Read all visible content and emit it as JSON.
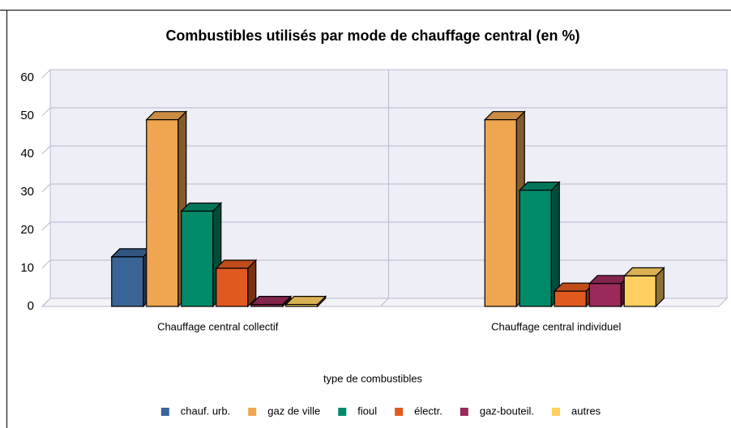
{
  "chart_data": {
    "type": "bar3d",
    "title": "Combustibles utilisés par mode de chauffage central (en %)",
    "x_label": "type de combustibles",
    "categories": [
      "Chauffage central collectif",
      "Chauffage central individuel"
    ],
    "series": [
      {
        "name": "chauf. urb.",
        "color": "#3a6496",
        "values": [
          13,
          null
        ]
      },
      {
        "name": "gaz de ville",
        "color": "#f0a550",
        "values": [
          49,
          49
        ]
      },
      {
        "name": "fioul",
        "color": "#008a6a",
        "values": [
          25,
          30.5
        ]
      },
      {
        "name": "électr.",
        "color": "#e05a20",
        "values": [
          10,
          4
        ]
      },
      {
        "name": "gaz-bouteil.",
        "color": "#9a2a5a",
        "values": [
          0.5,
          6
        ]
      },
      {
        "name": "autres",
        "color": "#ffd060",
        "values": [
          0.5,
          8
        ]
      }
    ],
    "ylim": [
      0,
      60
    ],
    "yticks": [
      0,
      10,
      20,
      30,
      40,
      50,
      60
    ],
    "grid": true,
    "legend": "bottom"
  }
}
